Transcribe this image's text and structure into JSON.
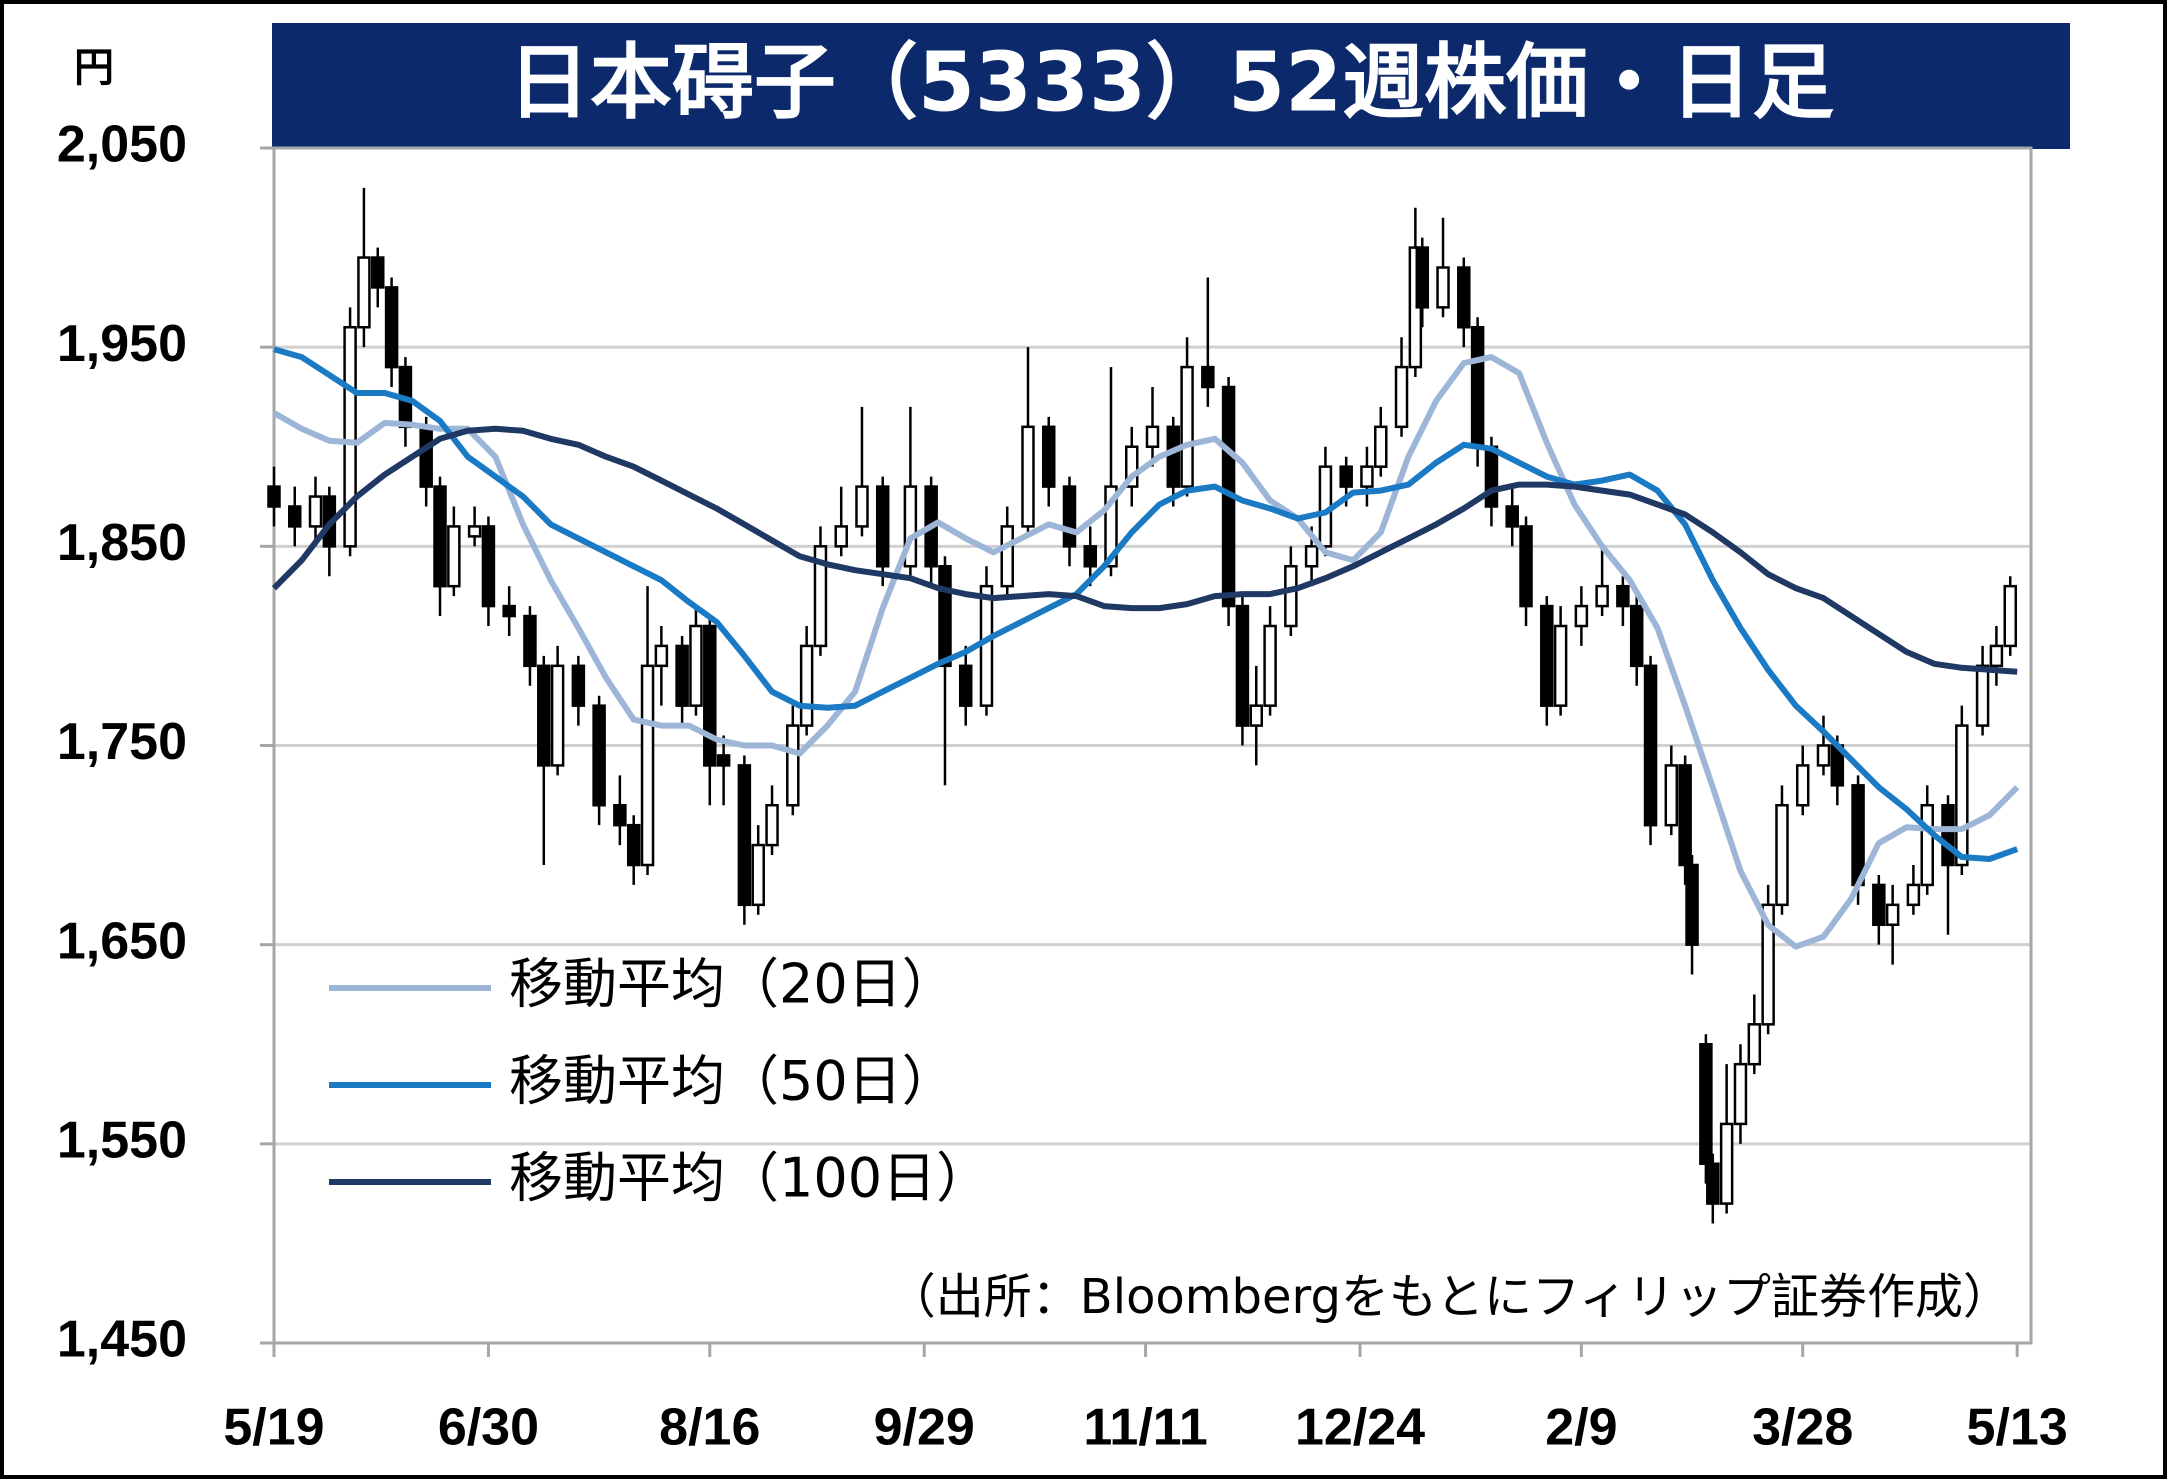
{
  "chart_data": {
    "type": "candlestick",
    "title": "日本碍子（5333）52週株価・日足",
    "y_label": "円",
    "annotation": "（出所：Bloombergをもとにフィリップ証券作成）",
    "xlim": [
      0,
      254
    ],
    "xticks": [
      {
        "value": 0,
        "label": "5/19"
      },
      {
        "value": 31,
        "label": "6/30"
      },
      {
        "value": 63,
        "label": "8/16"
      },
      {
        "value": 94,
        "label": "9/29"
      },
      {
        "value": 126,
        "label": "11/11"
      },
      {
        "value": 157,
        "label": "12/24"
      },
      {
        "value": 189,
        "label": "2/9"
      },
      {
        "value": 221,
        "label": "3/28"
      },
      {
        "value": 252,
        "label": "5/13"
      }
    ],
    "ylim": [
      1450,
      2050
    ],
    "yticks": [
      {
        "value": 1450,
        "label": "1,450"
      },
      {
        "value": 1550,
        "label": "1,550"
      },
      {
        "value": 1650,
        "label": "1,650"
      },
      {
        "value": 1750,
        "label": "1,750"
      },
      {
        "value": 1850,
        "label": "1,850"
      },
      {
        "value": 1950,
        "label": "1,950"
      },
      {
        "value": 2050,
        "label": "2,050"
      }
    ],
    "grid": true,
    "legend": "lower-left",
    "candle_color": "#000000",
    "candles": [
      {
        "x": 0,
        "open": 1880,
        "high": 1890,
        "low": 1860,
        "close": 1870
      },
      {
        "x": 3,
        "open": 1870,
        "high": 1880,
        "low": 1850,
        "close": 1860
      },
      {
        "x": 6,
        "open": 1860,
        "high": 1885,
        "low": 1850,
        "close": 1875
      },
      {
        "x": 8,
        "open": 1875,
        "high": 1880,
        "low": 1835,
        "close": 1850
      },
      {
        "x": 11,
        "open": 1850,
        "high": 1970,
        "low": 1845,
        "close": 1960
      },
      {
        "x": 13,
        "open": 1960,
        "high": 2030,
        "low": 1950,
        "close": 1995
      },
      {
        "x": 15,
        "open": 1995,
        "high": 2000,
        "low": 1970,
        "close": 1980
      },
      {
        "x": 17,
        "open": 1980,
        "high": 1985,
        "low": 1930,
        "close": 1940
      },
      {
        "x": 19,
        "open": 1940,
        "high": 1945,
        "low": 1900,
        "close": 1910
      },
      {
        "x": 22,
        "open": 1910,
        "high": 1915,
        "low": 1870,
        "close": 1880
      },
      {
        "x": 24,
        "open": 1880,
        "high": 1885,
        "low": 1815,
        "close": 1830
      },
      {
        "x": 26,
        "open": 1830,
        "high": 1870,
        "low": 1825,
        "close": 1860
      },
      {
        "x": 29,
        "open": 1855,
        "high": 1870,
        "low": 1850,
        "close": 1860
      },
      {
        "x": 31,
        "open": 1860,
        "high": 1865,
        "low": 1810,
        "close": 1820
      },
      {
        "x": 34,
        "open": 1820,
        "high": 1830,
        "low": 1805,
        "close": 1815
      },
      {
        "x": 37,
        "open": 1815,
        "high": 1820,
        "low": 1780,
        "close": 1790
      },
      {
        "x": 39,
        "open": 1790,
        "high": 1795,
        "low": 1690,
        "close": 1740
      },
      {
        "x": 41,
        "open": 1740,
        "high": 1800,
        "low": 1735,
        "close": 1790
      },
      {
        "x": 44,
        "open": 1790,
        "high": 1795,
        "low": 1760,
        "close": 1770
      },
      {
        "x": 47,
        "open": 1770,
        "high": 1775,
        "low": 1710,
        "close": 1720
      },
      {
        "x": 50,
        "open": 1720,
        "high": 1735,
        "low": 1700,
        "close": 1710
      },
      {
        "x": 52,
        "open": 1710,
        "high": 1715,
        "low": 1680,
        "close": 1690
      },
      {
        "x": 54,
        "open": 1690,
        "high": 1830,
        "low": 1685,
        "close": 1790
      },
      {
        "x": 56,
        "open": 1790,
        "high": 1810,
        "low": 1770,
        "close": 1800
      },
      {
        "x": 59,
        "open": 1800,
        "high": 1805,
        "low": 1760,
        "close": 1770
      },
      {
        "x": 61,
        "open": 1770,
        "high": 1820,
        "low": 1765,
        "close": 1810
      },
      {
        "x": 63,
        "open": 1810,
        "high": 1815,
        "low": 1720,
        "close": 1740
      },
      {
        "x": 65,
        "open": 1745,
        "high": 1755,
        "low": 1720,
        "close": 1740
      },
      {
        "x": 68,
        "open": 1740,
        "high": 1745,
        "low": 1660,
        "close": 1670
      },
      {
        "x": 70,
        "open": 1670,
        "high": 1710,
        "low": 1665,
        "close": 1700
      },
      {
        "x": 72,
        "open": 1700,
        "high": 1730,
        "low": 1695,
        "close": 1720
      },
      {
        "x": 75,
        "open": 1720,
        "high": 1770,
        "low": 1715,
        "close": 1760
      },
      {
        "x": 77,
        "open": 1760,
        "high": 1810,
        "low": 1755,
        "close": 1800
      },
      {
        "x": 79,
        "open": 1800,
        "high": 1860,
        "low": 1795,
        "close": 1850
      },
      {
        "x": 82,
        "open": 1850,
        "high": 1880,
        "low": 1845,
        "close": 1860
      },
      {
        "x": 85,
        "open": 1860,
        "high": 1920,
        "low": 1855,
        "close": 1880
      },
      {
        "x": 88,
        "open": 1880,
        "high": 1885,
        "low": 1830,
        "close": 1840
      },
      {
        "x": 92,
        "open": 1840,
        "high": 1920,
        "low": 1835,
        "close": 1880
      },
      {
        "x": 95,
        "open": 1880,
        "high": 1885,
        "low": 1830,
        "close": 1840
      },
      {
        "x": 97,
        "open": 1840,
        "high": 1845,
        "low": 1730,
        "close": 1790
      },
      {
        "x": 100,
        "open": 1790,
        "high": 1800,
        "low": 1760,
        "close": 1770
      },
      {
        "x": 103,
        "open": 1770,
        "high": 1840,
        "low": 1765,
        "close": 1830
      },
      {
        "x": 106,
        "open": 1830,
        "high": 1870,
        "low": 1825,
        "close": 1860
      },
      {
        "x": 109,
        "open": 1860,
        "high": 1950,
        "low": 1855,
        "close": 1910
      },
      {
        "x": 112,
        "open": 1910,
        "high": 1915,
        "low": 1870,
        "close": 1880
      },
      {
        "x": 115,
        "open": 1880,
        "high": 1885,
        "low": 1840,
        "close": 1850
      },
      {
        "x": 118,
        "open": 1850,
        "high": 1860,
        "low": 1830,
        "close": 1840
      },
      {
        "x": 121,
        "open": 1840,
        "high": 1940,
        "low": 1835,
        "close": 1880
      },
      {
        "x": 124,
        "open": 1880,
        "high": 1910,
        "low": 1870,
        "close": 1900
      },
      {
        "x": 127,
        "open": 1900,
        "high": 1930,
        "low": 1890,
        "close": 1910
      },
      {
        "x": 130,
        "open": 1910,
        "high": 1915,
        "low": 1870,
        "close": 1880
      },
      {
        "x": 132,
        "open": 1880,
        "high": 1955,
        "low": 1875,
        "close": 1940
      },
      {
        "x": 135,
        "open": 1940,
        "high": 1985,
        "low": 1920,
        "close": 1930
      },
      {
        "x": 138,
        "open": 1930,
        "high": 1935,
        "low": 1810,
        "close": 1820
      },
      {
        "x": 140,
        "open": 1820,
        "high": 1825,
        "low": 1750,
        "close": 1760
      },
      {
        "x": 142,
        "open": 1760,
        "high": 1790,
        "low": 1740,
        "close": 1770
      },
      {
        "x": 144,
        "open": 1770,
        "high": 1820,
        "low": 1765,
        "close": 1810
      },
      {
        "x": 147,
        "open": 1810,
        "high": 1850,
        "low": 1805,
        "close": 1840
      },
      {
        "x": 150,
        "open": 1840,
        "high": 1860,
        "low": 1830,
        "close": 1850
      },
      {
        "x": 152,
        "open": 1850,
        "high": 1900,
        "low": 1845,
        "close": 1890
      },
      {
        "x": 155,
        "open": 1890,
        "high": 1895,
        "low": 1870,
        "close": 1880
      },
      {
        "x": 158,
        "open": 1880,
        "high": 1900,
        "low": 1870,
        "close": 1890
      },
      {
        "x": 160,
        "open": 1890,
        "high": 1920,
        "low": 1885,
        "close": 1910
      },
      {
        "x": 163,
        "open": 1910,
        "high": 1955,
        "low": 1905,
        "close": 1940
      },
      {
        "x": 165,
        "open": 1940,
        "high": 2020,
        "low": 1935,
        "close": 2000
      },
      {
        "x": 166,
        "open": 2000,
        "high": 2005,
        "low": 1960,
        "close": 1970
      },
      {
        "x": 169,
        "open": 1970,
        "high": 2015,
        "low": 1965,
        "close": 1990
      },
      {
        "x": 172,
        "open": 1990,
        "high": 1995,
        "low": 1950,
        "close": 1960
      },
      {
        "x": 174,
        "open": 1960,
        "high": 1965,
        "low": 1890,
        "close": 1900
      },
      {
        "x": 176,
        "open": 1900,
        "high": 1905,
        "low": 1860,
        "close": 1870
      },
      {
        "x": 179,
        "open": 1870,
        "high": 1880,
        "low": 1850,
        "close": 1860
      },
      {
        "x": 181,
        "open": 1860,
        "high": 1865,
        "low": 1810,
        "close": 1820
      },
      {
        "x": 184,
        "open": 1820,
        "high": 1825,
        "low": 1760,
        "close": 1770
      },
      {
        "x": 186,
        "open": 1770,
        "high": 1820,
        "low": 1765,
        "close": 1810
      },
      {
        "x": 189,
        "open": 1810,
        "high": 1830,
        "low": 1800,
        "close": 1820
      },
      {
        "x": 192,
        "open": 1820,
        "high": 1850,
        "low": 1815,
        "close": 1830
      },
      {
        "x": 195,
        "open": 1830,
        "high": 1835,
        "low": 1810,
        "close": 1820
      },
      {
        "x": 197,
        "open": 1820,
        "high": 1825,
        "low": 1780,
        "close": 1790
      },
      {
        "x": 199,
        "open": 1790,
        "high": 1795,
        "low": 1700,
        "close": 1710
      },
      {
        "x": 202,
        "open": 1710,
        "high": 1750,
        "low": 1705,
        "close": 1740
      },
      {
        "x": 204,
        "open": 1740,
        "high": 1745,
        "low": 1680,
        "close": 1690
      },
      {
        "x": 205,
        "open": 1690,
        "high": 1695,
        "low": 1635,
        "close": 1650
      },
      {
        "x": 207,
        "open": 1600,
        "high": 1605,
        "low": 1530,
        "close": 1540
      },
      {
        "x": 208,
        "open": 1540,
        "high": 1545,
        "low": 1510,
        "close": 1520
      },
      {
        "x": 210,
        "open": 1520,
        "high": 1590,
        "low": 1515,
        "close": 1560
      },
      {
        "x": 212,
        "open": 1560,
        "high": 1600,
        "low": 1550,
        "close": 1590
      },
      {
        "x": 214,
        "open": 1590,
        "high": 1625,
        "low": 1585,
        "close": 1610
      },
      {
        "x": 216,
        "open": 1610,
        "high": 1680,
        "low": 1605,
        "close": 1670
      },
      {
        "x": 218,
        "open": 1670,
        "high": 1730,
        "low": 1665,
        "close": 1720
      },
      {
        "x": 221,
        "open": 1720,
        "high": 1750,
        "low": 1715,
        "close": 1740
      },
      {
        "x": 224,
        "open": 1740,
        "high": 1765,
        "low": 1735,
        "close": 1750
      },
      {
        "x": 226,
        "open": 1750,
        "high": 1755,
        "low": 1720,
        "close": 1730
      },
      {
        "x": 229,
        "open": 1730,
        "high": 1735,
        "low": 1670,
        "close": 1680
      },
      {
        "x": 232,
        "open": 1680,
        "high": 1685,
        "low": 1650,
        "close": 1660
      },
      {
        "x": 234,
        "open": 1660,
        "high": 1680,
        "low": 1640,
        "close": 1670
      },
      {
        "x": 237,
        "open": 1670,
        "high": 1690,
        "low": 1665,
        "close": 1680
      },
      {
        "x": 239,
        "open": 1680,
        "high": 1730,
        "low": 1675,
        "close": 1720
      },
      {
        "x": 242,
        "open": 1720,
        "high": 1725,
        "low": 1655,
        "close": 1690
      },
      {
        "x": 244,
        "open": 1690,
        "high": 1770,
        "low": 1685,
        "close": 1760
      },
      {
        "x": 247,
        "open": 1760,
        "high": 1800,
        "low": 1755,
        "close": 1790
      },
      {
        "x": 249,
        "open": 1790,
        "high": 1810,
        "low": 1780,
        "close": 1800
      },
      {
        "x": 251,
        "open": 1800,
        "high": 1835,
        "low": 1795,
        "close": 1830
      }
    ],
    "x": [
      0,
      4,
      8,
      12,
      16,
      20,
      24,
      28,
      32,
      36,
      40,
      44,
      48,
      52,
      56,
      60,
      64,
      68,
      72,
      76,
      80,
      84,
      88,
      92,
      96,
      100,
      104,
      108,
      112,
      116,
      120,
      124,
      128,
      132,
      136,
      140,
      144,
      148,
      152,
      156,
      160,
      164,
      168,
      172,
      176,
      180,
      184,
      188,
      192,
      196,
      200,
      204,
      208,
      212,
      216,
      220,
      224,
      228,
      232,
      236,
      240,
      244,
      248,
      252
    ],
    "series": [
      {
        "name": "移動平均（20日）",
        "color": "#9db6d8",
        "values": [
          1917,
          1909,
          1903,
          1902,
          1912,
          1911,
          1909,
          1909,
          1895,
          1861,
          1833,
          1809,
          1784,
          1763,
          1760,
          1760,
          1753,
          1750,
          1750,
          1746,
          1760,
          1777,
          1819,
          1854,
          1862,
          1854,
          1847,
          1854,
          1861,
          1857,
          1868,
          1885,
          1895,
          1901,
          1904,
          1892,
          1873,
          1864,
          1847,
          1843,
          1857,
          1895,
          1923,
          1942,
          1945,
          1937,
          1902,
          1871,
          1850,
          1833,
          1809,
          1770,
          1729,
          1687,
          1660,
          1649,
          1654,
          1673,
          1701,
          1709,
          1708,
          1708,
          1715,
          1729
        ]
      },
      {
        "name": "移動平均（50日）",
        "color": "#1a7ac4",
        "values": [
          1949,
          1945,
          1936,
          1927,
          1927,
          1923,
          1913,
          1895,
          1885,
          1875,
          1861,
          1854,
          1847,
          1840,
          1833,
          1822,
          1812,
          1795,
          1777,
          1770,
          1769,
          1770,
          1777,
          1784,
          1791,
          1797,
          1805,
          1812,
          1819,
          1826,
          1840,
          1857,
          1871,
          1878,
          1880,
          1873,
          1869,
          1864,
          1867,
          1877,
          1878,
          1881,
          1892,
          1901,
          1899,
          1892,
          1885,
          1881,
          1883,
          1886,
          1878,
          1861,
          1833,
          1809,
          1788,
          1770,
          1757,
          1743,
          1729,
          1718,
          1705,
          1694,
          1693,
          1698
        ]
      },
      {
        "name": "移動平均（100日）",
        "color": "#1f3864",
        "values": [
          1829,
          1843,
          1861,
          1875,
          1886,
          1895,
          1904,
          1908,
          1909,
          1908,
          1904,
          1901,
          1895,
          1890,
          1883,
          1876,
          1869,
          1861,
          1853,
          1845,
          1841,
          1838,
          1836,
          1834,
          1829,
          1826,
          1824,
          1825,
          1826,
          1825,
          1820,
          1819,
          1819,
          1821,
          1825,
          1826,
          1826,
          1829,
          1834,
          1840,
          1847,
          1854,
          1861,
          1869,
          1878,
          1881,
          1881,
          1880,
          1878,
          1876,
          1871,
          1866,
          1857,
          1847,
          1836,
          1829,
          1824,
          1815,
          1806,
          1797,
          1791,
          1789,
          1788,
          1787
        ]
      }
    ]
  }
}
